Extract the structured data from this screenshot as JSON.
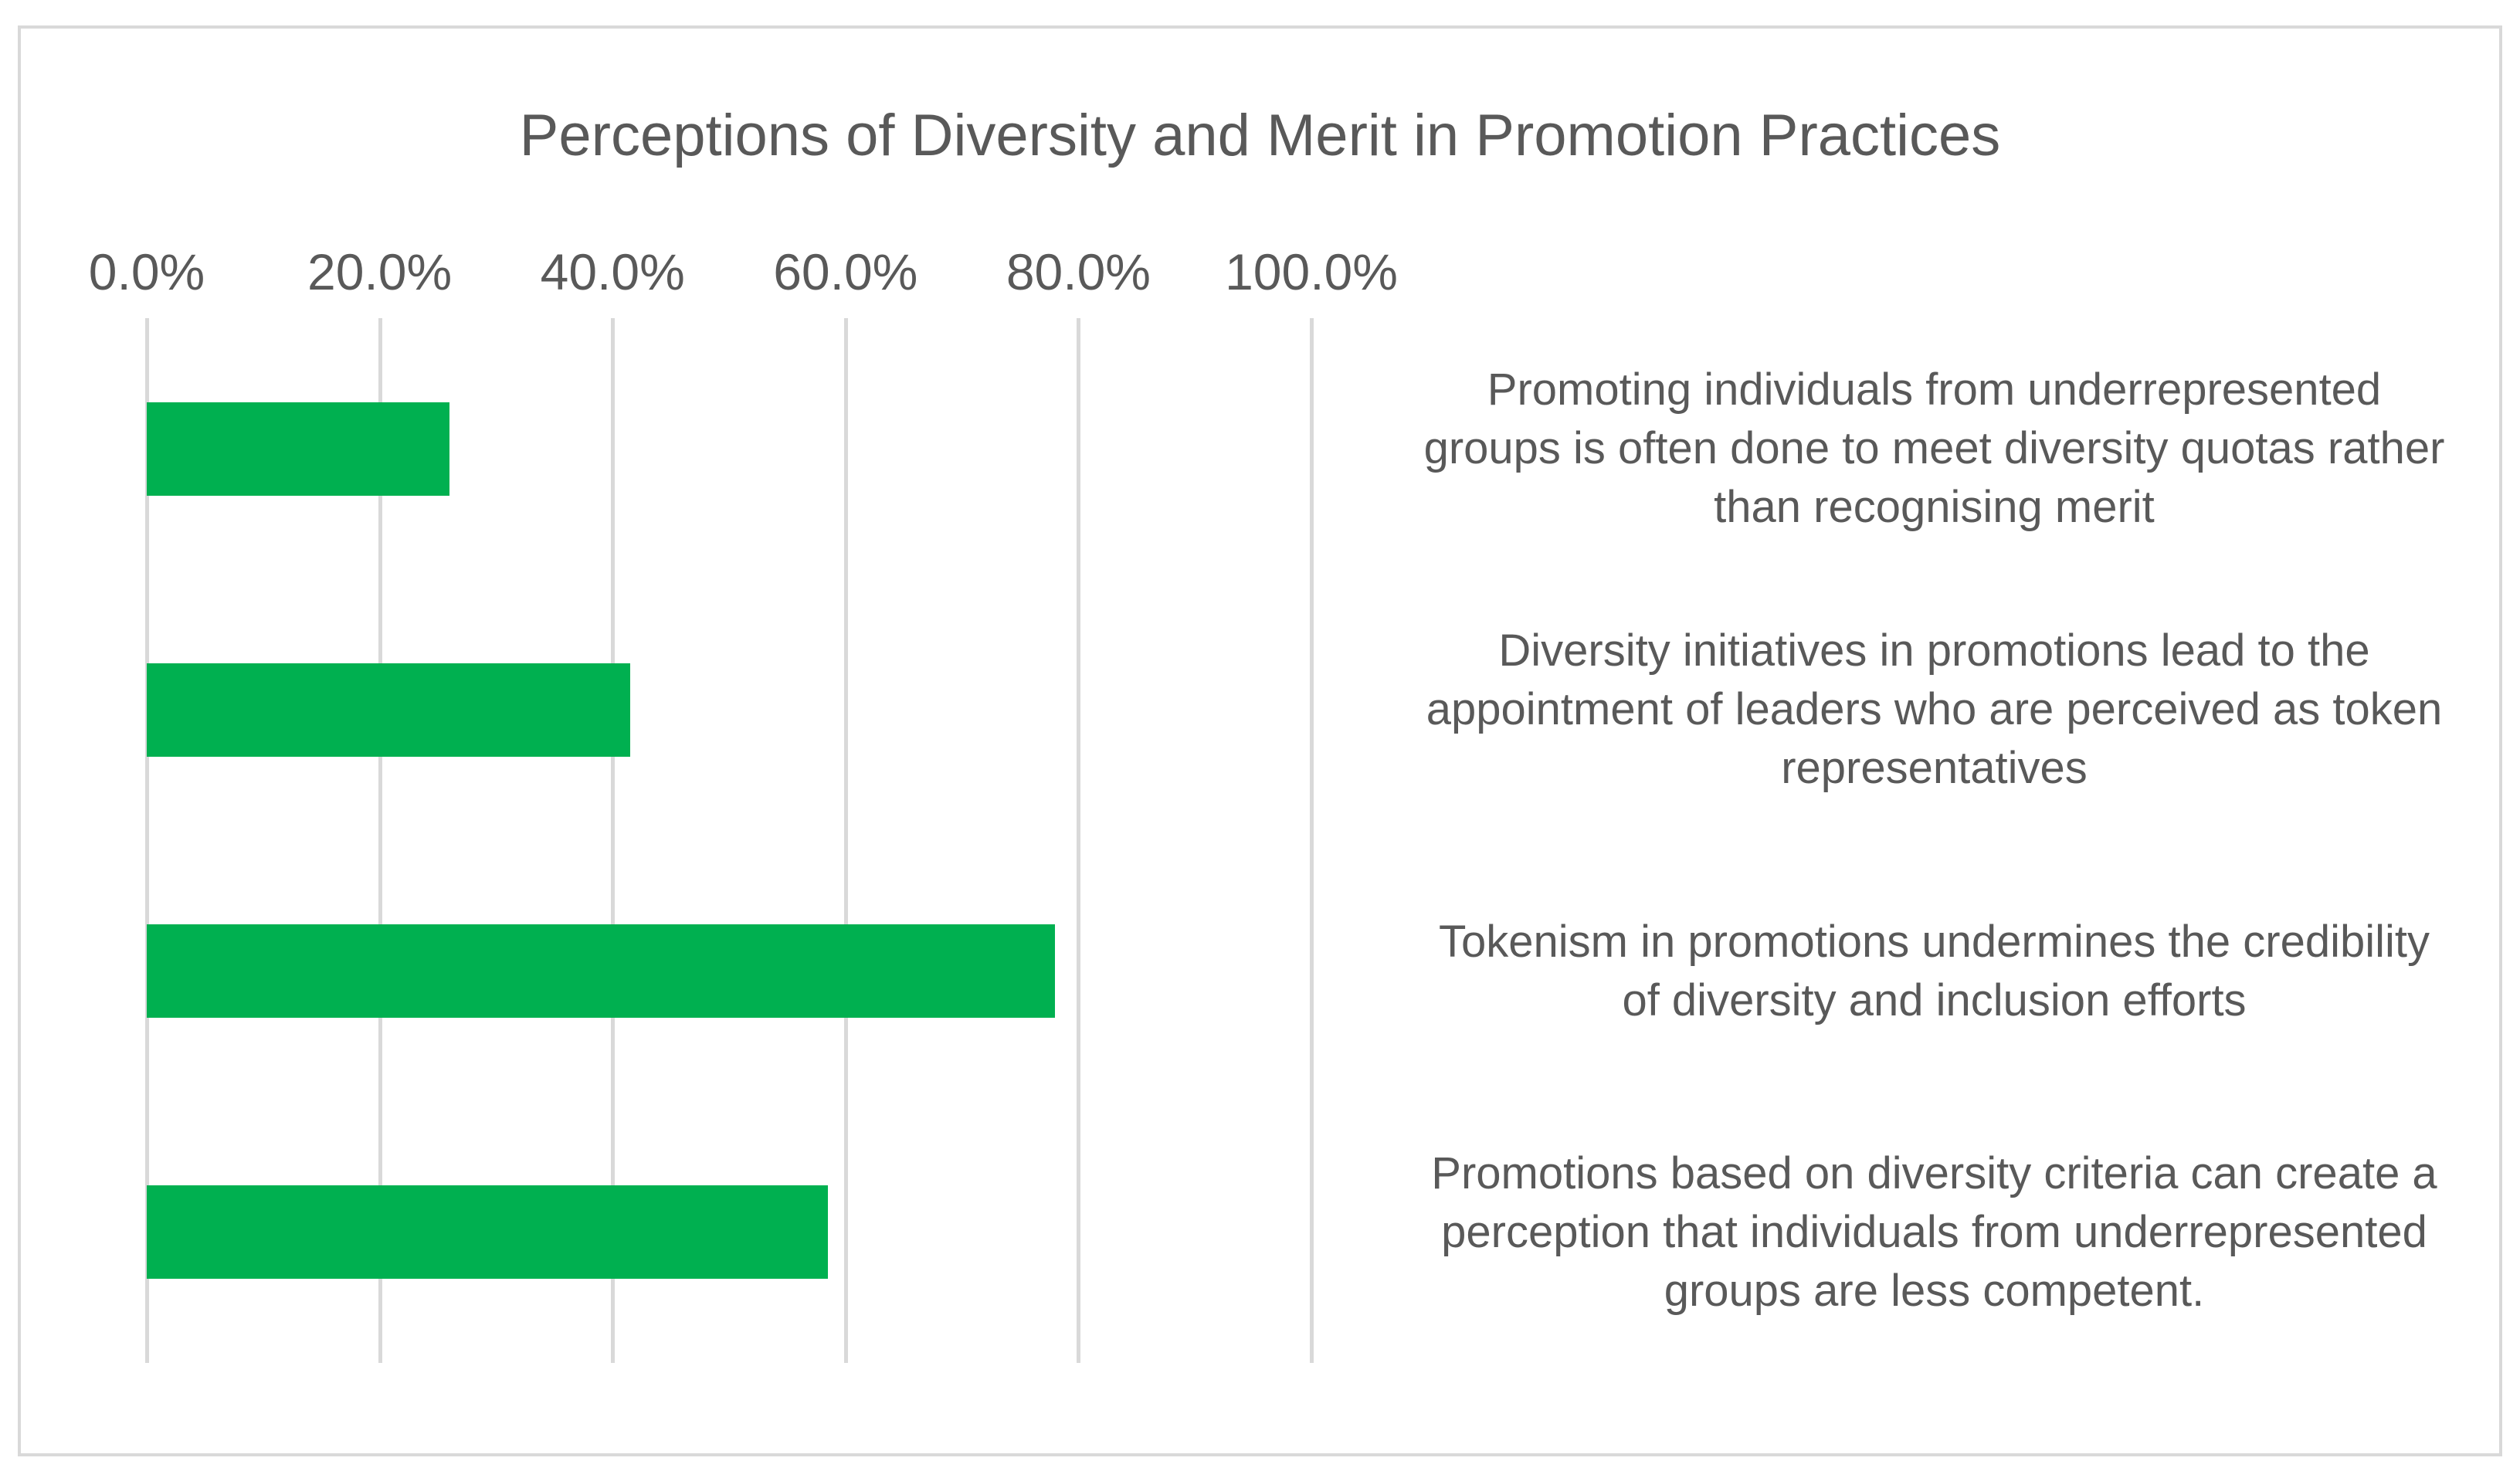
{
  "chart_data": {
    "type": "bar",
    "orientation": "horizontal",
    "title": "Perceptions of Diversity and Merit in Promotion Practices",
    "categories": [
      "Promoting individuals from underrepresented groups is often done to meet diversity quotas rather than recognising merit",
      "Diversity initiatives in promotions lead to the appointment of leaders who are perceived as token representatives",
      "Tokenism in promotions undermines the credibility of diversity and inclusion efforts",
      "Promotions based on diversity criteria can create a perception that individuals from underrepresented groups are less competent."
    ],
    "category_display_lines": [
      [
        "Promoting individuals from underrepresented",
        "groups is often done to meet diversity quotas rather",
        "than recognising merit"
      ],
      [
        "Diversity initiatives in promotions lead to the",
        "appointment of leaders who are perceived as token",
        "representatives"
      ],
      [
        "Tokenism in promotions undermines the credibility",
        "of diversity and inclusion efforts"
      ],
      [
        "Promotions based on diversity criteria can create a",
        "perception that individuals from underrepresented",
        "groups are less competent."
      ]
    ],
    "values": [
      26.0,
      41.5,
      78.0,
      58.5
    ],
    "unit": "%",
    "x_axis": {
      "position": "top",
      "range": [
        0,
        100
      ],
      "tick_labels": [
        "0.0%",
        "20.0%",
        "40.0%",
        "60.0%",
        "80.0%",
        "100.0%"
      ],
      "tick_values": [
        0,
        20,
        40,
        60,
        80,
        100
      ]
    },
    "legend": "none",
    "grid": "vertical-only",
    "colors": {
      "bar": "#00B050",
      "gridline": "#D9D9D9",
      "frame_border": "#D9D9D9",
      "text": "#595959",
      "background": "#FFFFFF"
    }
  }
}
